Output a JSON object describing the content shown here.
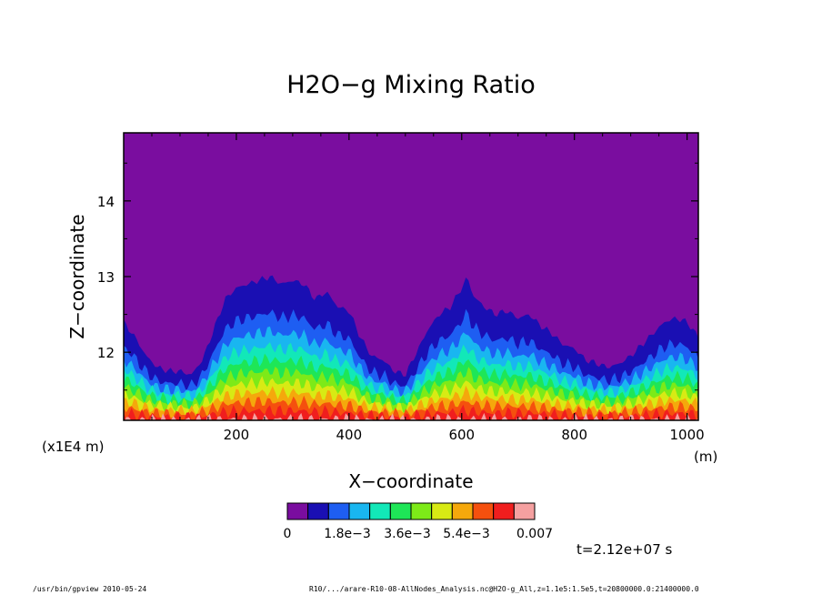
{
  "chart_data": {
    "type": "heatmap",
    "title": "H2O−g Mixing Ratio",
    "xlabel": "X−coordinate",
    "ylabel": "Z−coordinate",
    "x_multiplier_label": "(x1E4 m)",
    "x_unit_label": "(m)",
    "xlim": [
      0,
      1020
    ],
    "ylim": [
      11.1,
      14.9
    ],
    "xticks": [
      "200",
      "400",
      "600",
      "800",
      "1000"
    ],
    "yticks": [
      "12",
      "13",
      "14"
    ],
    "xtick_values": [
      200,
      400,
      600,
      800,
      1000
    ],
    "ytick_values": [
      12,
      13,
      14
    ],
    "time_label": "t=2.12e+07 s",
    "colorbar": {
      "min": 0,
      "max": 0.007,
      "tick_labels": [
        "0",
        "1.8e−3",
        "3.6e−3",
        "5.4e−3",
        "0.007"
      ],
      "colors": [
        "#7a0d9f",
        "#1a0fb3",
        "#1e5ef2",
        "#19b6f0",
        "#12e8b8",
        "#1ee657",
        "#7dea18",
        "#d8ea14",
        "#f5a80c",
        "#f5500e",
        "#f01e1e",
        "#f5a0a0"
      ]
    },
    "profiles": {
      "x": [
        0,
        10,
        20,
        40,
        60,
        80,
        100,
        120,
        140,
        160,
        180,
        200,
        220,
        240,
        260,
        280,
        300,
        320,
        340,
        360,
        380,
        400,
        420,
        440,
        460,
        480,
        500,
        520,
        540,
        560,
        580,
        600,
        610,
        620,
        640,
        660,
        680,
        700,
        720,
        740,
        760,
        780,
        800,
        820,
        840,
        860,
        880,
        900,
        920,
        940,
        960,
        980,
        1000,
        1020
      ],
      "top_of_moist_layer_z": [
        12.4,
        12.3,
        12.2,
        11.95,
        11.8,
        11.75,
        11.75,
        11.7,
        11.9,
        12.3,
        12.7,
        12.85,
        12.9,
        12.95,
        13.0,
        12.9,
        12.95,
        12.9,
        12.7,
        12.8,
        12.6,
        12.55,
        12.2,
        11.95,
        11.9,
        11.75,
        11.7,
        12.0,
        12.3,
        12.5,
        12.6,
        12.85,
        13.0,
        12.75,
        12.6,
        12.5,
        12.55,
        12.45,
        12.5,
        12.35,
        12.25,
        12.1,
        12.05,
        11.9,
        11.85,
        11.8,
        11.85,
        11.95,
        12.1,
        12.25,
        12.4,
        12.45,
        12.4,
        12.2
      ]
    }
  }
}
